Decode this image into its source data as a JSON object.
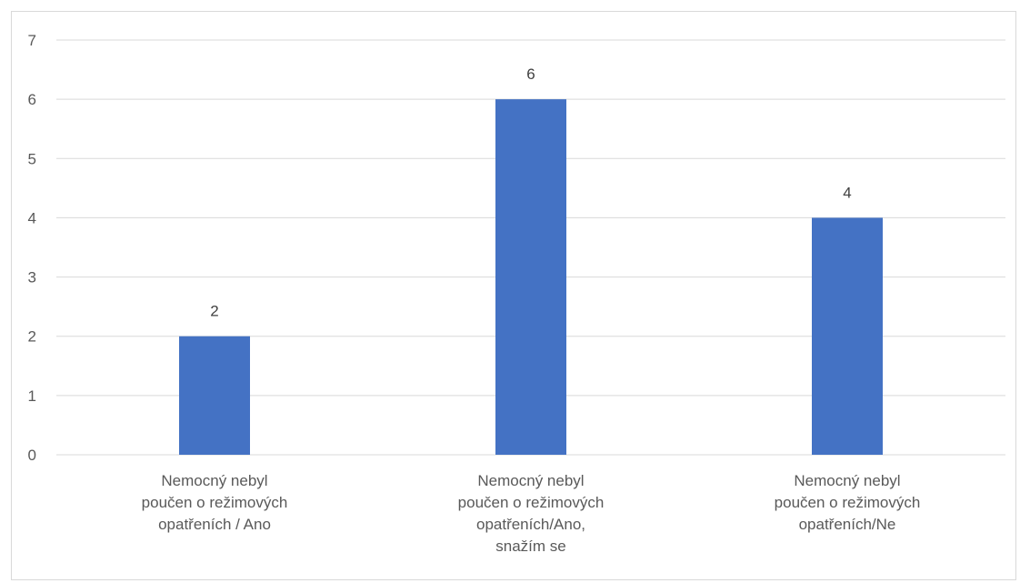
{
  "chart_data": {
    "type": "bar",
    "title": "",
    "xlabel": "",
    "ylabel": "",
    "categories": [
      "Nemocný nebyl poučen o režimových opatřeních / Ano",
      "Nemocný nebyl poučen o režimových opatřeních/Ano, snažím se",
      "Nemocný nebyl poučen o režimových opatřeních/Ne"
    ],
    "category_lines": [
      [
        "Nemocný nebyl",
        "poučen o režimových",
        "opatřeních / Ano"
      ],
      [
        "Nemocný nebyl",
        "poučen o režimových",
        "opatřeních/Ano,",
        "snažím se"
      ],
      [
        "Nemocný nebyl",
        "poučen o režimových",
        "opatřeních/Ne"
      ]
    ],
    "values": [
      2,
      6,
      4
    ],
    "data_labels": [
      "2",
      "6",
      "4"
    ],
    "ylim": [
      0,
      7
    ],
    "yticks": [
      0,
      1,
      2,
      3,
      4,
      5,
      6,
      7
    ],
    "grid": true,
    "legend": "none",
    "bar_color": "#4472C4",
    "gridline_color": "#d9d9d9"
  }
}
